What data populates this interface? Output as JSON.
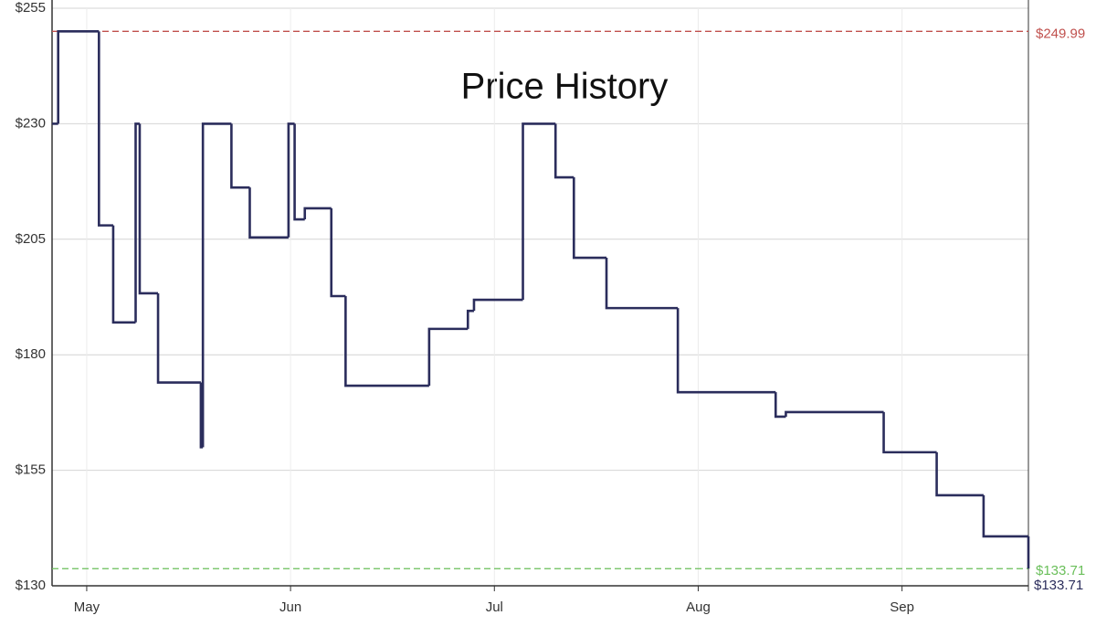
{
  "chart_data": {
    "type": "step",
    "title": "Price History",
    "color": "#2b2d5c",
    "x": [
      4.83,
      4.86,
      5.06,
      5.13,
      5.24,
      5.26,
      5.35,
      5.56,
      5.57,
      5.71,
      5.8,
      5.99,
      6.02,
      6.07,
      6.2,
      6.27,
      6.68,
      6.87,
      6.9,
      7.14,
      7.3,
      7.39,
      7.55,
      7.9,
      8.38,
      8.43,
      8.91,
      9.17,
      9.4,
      9.62
    ],
    "values": [
      230,
      249.99,
      208,
      187,
      230,
      193.3,
      174,
      160,
      230,
      216.2,
      205.4,
      230,
      209.3,
      211.7,
      192.7,
      173.3,
      185.6,
      189.5,
      191.9,
      230,
      218.4,
      201,
      190.1,
      171.9,
      166.6,
      167.6,
      158.9,
      149.6,
      140.7,
      133.71
    ],
    "xlim": [
      4.83,
      9.62
    ],
    "xticks": [
      {
        "value": 5,
        "label": "May"
      },
      {
        "value": 6,
        "label": "Jun"
      },
      {
        "value": 7,
        "label": "Jul"
      },
      {
        "value": 8,
        "label": "Aug"
      },
      {
        "value": 9,
        "label": "Sep"
      }
    ],
    "ylim": [
      130,
      255
    ],
    "yticks": [
      {
        "value": 130,
        "label": "$130"
      },
      {
        "value": 155,
        "label": "$155"
      },
      {
        "value": 180,
        "label": "$180"
      },
      {
        "value": 205,
        "label": "$205"
      },
      {
        "value": 230,
        "label": "$230"
      },
      {
        "value": 255,
        "label": "$255"
      }
    ],
    "grid": true,
    "reference_lines": [
      {
        "value": 249.99,
        "label": "$249.99",
        "color": "#c0504d"
      },
      {
        "value": 133.71,
        "label": "$133.71",
        "color": "#6abf5a"
      }
    ],
    "current": {
      "value": 133.71,
      "label": "$133.71"
    }
  }
}
